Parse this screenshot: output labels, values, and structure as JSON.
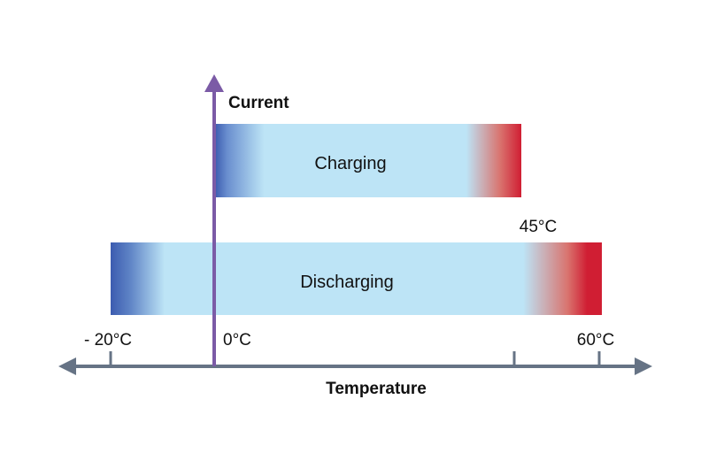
{
  "colors": {
    "current_axis": "#7b5ba6",
    "temperature_axis": "#667385",
    "band_fill": "#bde4f6",
    "cold_end": "#3c5cb0",
    "hot_end": "#d01e33",
    "text": "#111111"
  },
  "labels": {
    "current_axis": "Current",
    "temperature_axis": "Temperature",
    "charging": "Charging",
    "discharging": "Discharging",
    "charge_max": "45°C",
    "tick_min": "- 20°C",
    "tick_zero": "0°C",
    "tick_max": "60°C"
  },
  "temperature_range": {
    "discharging": {
      "min_c": -20,
      "max_c": 60
    },
    "charging": {
      "min_c": 0,
      "max_c": 45
    }
  }
}
